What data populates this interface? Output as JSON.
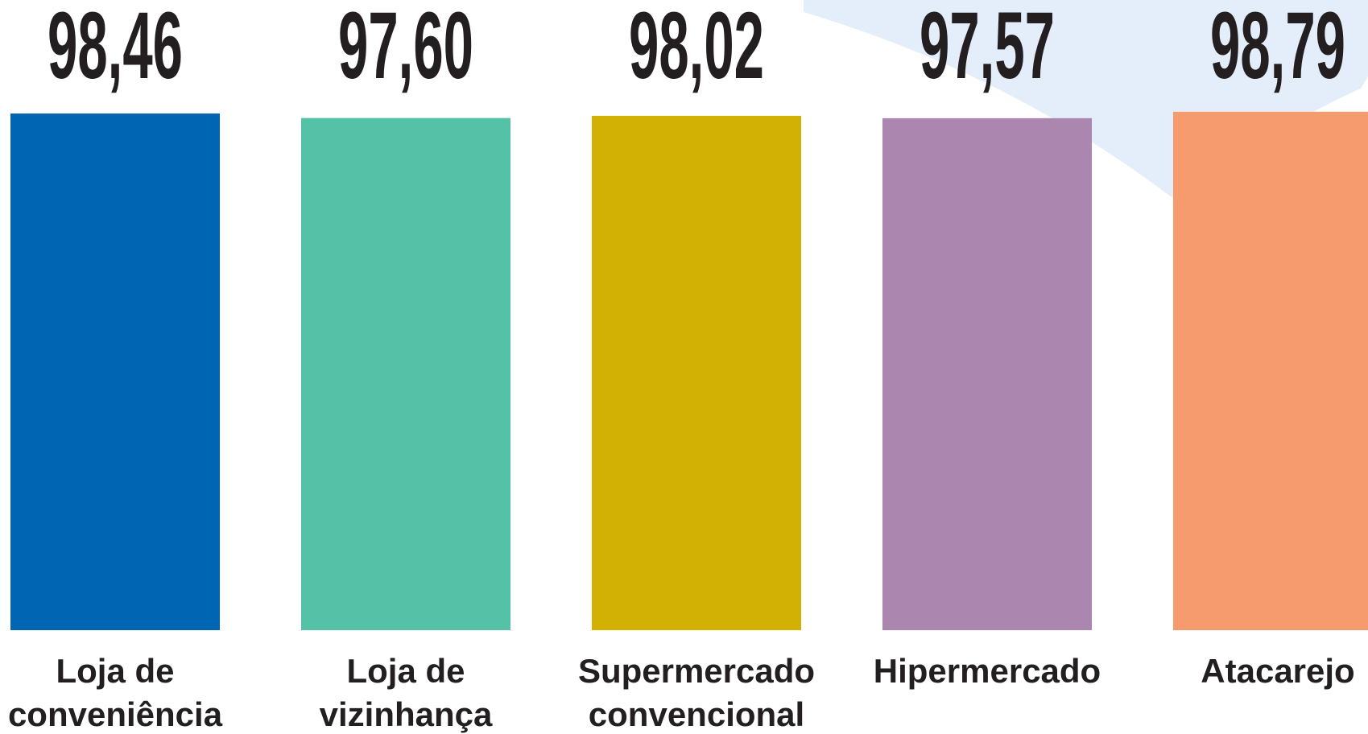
{
  "chart_data": {
    "type": "bar",
    "categories": [
      "Loja de\nconveniência",
      "Loja de\nvizinhança",
      "Supermercado\nconvencional",
      "Hipermercado",
      "Atacarejo"
    ],
    "values": [
      98.46,
      97.6,
      98.02,
      97.57,
      98.79
    ],
    "value_labels": [
      "98,46",
      "97,60",
      "98,02",
      "97,57",
      "98,79"
    ],
    "colors": [
      "#0066b3",
      "#55c2a8",
      "#d3b104",
      "#ab86ae",
      "#f59b6d"
    ],
    "ylim": [
      0,
      100
    ]
  }
}
